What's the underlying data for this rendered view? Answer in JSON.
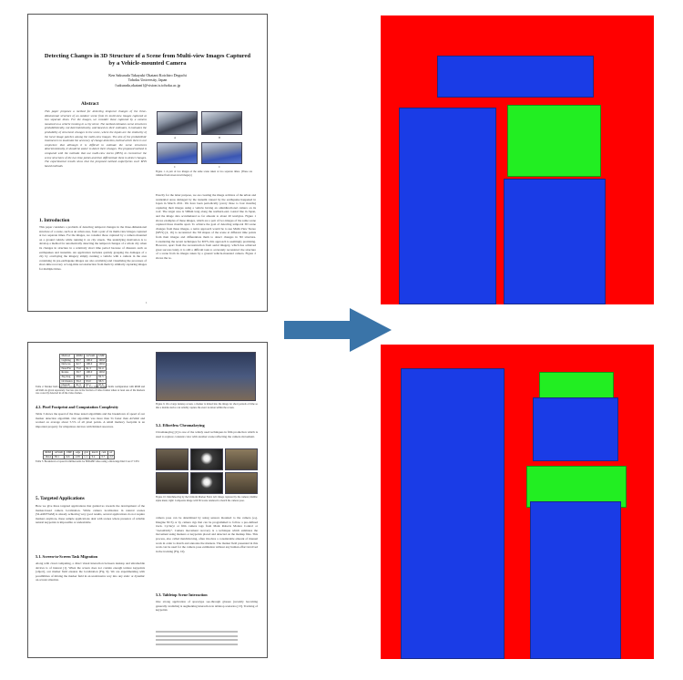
{
  "paper": {
    "title": "Detecting Changes in 3D Structure of a Scene from Multi-view Images Captured by a Vehicle-mounted Camera",
    "authors": "Ken Sakurada   Takayuki Okatani   Koichiro Deguchi",
    "affiliation": "Tohoku University, Japan",
    "email": "{sakurada,okatani}@vision.is.tohoku.ac.jp",
    "abstract_heading": "Abstract",
    "abstract_text": "This paper proposes a method for detecting temporal changes of the three-dimensional structure of an outdoor scene from its multi-view images captured at two separate times. For the images, we consider those captured by a camera mounted on a vehicle running in a city street. The method estimates scene structures probabilistically, not deterministically, and based on their estimates, it evaluates the probability of structural changes in the scene, where the inputs are the similarity of the local image patches among the multi-view images. The aim of the probabilistic treatment is to maximize the accuracy of change detection, behind which there is our conjecture that although it is difficult to estimate the scene structures deterministically, it should be easier to detect their changes. The proposed method is compared with the methods that use multi-view stereo (MVS) to reconstruct the scene structures of the two time points and then differentiate them to detect changes. The experimental results show that the proposed method outperforms such MVS based methods.",
    "intro_heading": "1. Introduction",
    "intro_text": "This paper considers a problem of detecting temporal changes in the three-dimensional structure of a scene, such as an urban area, from a pair of its multi-view images captured at two separate times. For the images, we consider those captured by a camera mounted on a ground vehicle while running it on city streets. The underlying motivation is to develop a method for automatically detecting the temporal changes of a whole city when its changes in structure in a relatively short time period because of disasters such as earthquakes and tsunamis. An application includes quickly grasping the damages of a city by overlaying the imagery simply running a vehicle with a camera in the area containing its pre-earthquake images are also available) and visualizing the processes of short-time recovery or long-time reconstruction from them by similarly capturing images for multiple times.",
    "fig1_caption": "Figure 1. A pair of two images of the same scene taken at two separate times. (These are trimmed from street-level imagery.)",
    "fig1_labels": [
      "A",
      "B",
      "C",
      "C"
    ],
    "col2_text": "Exactly for the latter purpose, we are creating the image archives of the urban and residential areas damaged by the tsunami caused by the earthquake happened in Japan in March 2011. We have been periodically (every three to four months) capturing their images using a vehicle having an omnidirectional camera on its roof. The target area is 500km long along the northern-east coastal line in Japan, and the image data accumulated so far amount to about 20 terabytes. Figure 1 shows examples of these images, which are a pair of two images of the same scene captured three months apart.\n\nTo achieve the goal of detecting temporal 3D scene changes from these images, a naive approach would be to use Multi-View Stereo (MVS) [4, 16] to reconstruct the 3D shapes of the scene at different time points from their images and differentiate them to detect changes in 3D structure. Considering the recent techniques for MVS, this approach is seemingly promising. However, apart from the reconstruction from aerial imagery, which has achieved great success lately, it is still a difficult task to accurately reconstruct the structure of a scene from its images taken by a ground vehicle-mounted camera. Figure 2 shows the re-",
    "page_number": "1",
    "table1": {
      "header": [
        "Method",
        "RDM",
        "ALVAR",
        "UMP"
      ],
      "rows": [
        [
          "Lighting",
          "80.7",
          "100.0",
          "100.0"
        ],
        [
          "Defocus",
          "62.7",
          "100.0",
          "100.0"
        ],
        [
          "Near/Far",
          "75.0",
          "91.3",
          "91.4"
        ],
        [
          "Rotate",
          "56.7",
          "100.0",
          "100.0"
        ],
        [
          "Zig-Zag",
          "28.6",
          "61.2",
          "62.3"
        ],
        [
          "Occlusion",
          "56.2",
          "93.0",
          "96.3"
        ],
        [
          "Overall",
          "61.5",
          "97.1",
          "97.6"
        ]
      ],
      "caption": "Table 2. Marker field detection success rates in %. For UMP, marker fields configuration with RDM and ALVAR are given separately. Success rate is the fraction of video frames where at least one of the markers was correctly detected in all the video frames."
    },
    "fig9_caption": "Figure 9. On a large desktop screen, a marker is mixed into the image for short periods of time so that a mobile device can reliably capture the exact location within the screen.",
    "sec42_heading": "4.2. Pixel Footprint and Computation Complexity",
    "sec42_text": "Table 3 shows the speed of the three tested algorithms and the breakdown of speed of our marker detection algorithm. Our algorithm was more than 5x faster than ALVAR and worked on average about 5.5% of all pixel points. A small memory footprint is an important property for ubiquitous devices with limited resources.",
    "table2": {
      "header": [
        "RDM",
        "ALVAR",
        "UMP",
        "edge",
        "grid",
        "match",
        "cam",
        "ref"
      ],
      "row": [
        "164.4",
        "38.1",
        "6.6",
        "2.05",
        "1.1",
        "0.2",
        "0.7",
        "2.2"
      ],
      "caption": "Table 3. Breakdown of speed in milliseconds for 800x480 video using a mid-range Intel Core i7 CPU."
    },
    "sec5_heading": "5. Targeted Applications",
    "sec5_text": "Here we give three targeted applications that guided us towards the development of the marker-based camera localization. While camera localization in natural scenes (SLAM/PTAM) is already achieving very good results, several applications do not require markers anymore, these sample applications deal with scenes where presence of reliable natural keypoints is impossible or undesirable.",
    "sec51_heading": "5.1. Screen-to-Screen Task Migration",
    "sec51_text": "Along with cloud computing, a direct visual interaction between desktop and ultramobile devices is of interest [1]. When the screen does not contain enough texture keypoints (object), our marker field ensures the localization (Fig. 9). We are experimenting with possibilities of mixing the marker field in an unobtrusive way into any static or dynamic on-screen situation.",
    "sec52_heading": "5.2. Effortless Chromakeying",
    "sec52_text": "Chromakeying [2] is one of the widely used techniques in film production which is used to replace constant color with another scene reflecting the camera movement.",
    "fig10_caption": "Figure 10. Matchmoving by the Uniform Marker Field. left: image captured by the camera; middle: alpha mask; right: Composite image with 3D scene rendered to match the camera pose.",
    "col2b_text": "camera pose can be determined by using sensors mounted to the camera (e.g. Imagine NCS) or by camera rigs that can be programmed to follow a pre-defined track. Cycleryt or film camera tags from Mark Roberts Motion Control or \"AstonDolly\". Camera movement recovery is a technique which estimates the movement using markers or keypoints placed and detected on the markup files. This process, also called matchmoving, often involves a considerable amount of manual work in order to match and annotate the markers. The marker field presented in this work can be used for the camera pose estimation without any human effort involved in the tracking (Fig. 10).",
    "sec53_heading": "5.3. Tabletop Scene Interaction",
    "sec53_text": "One strong application of spacetype see-through glasses (recently becoming generally available) is augmenting interaction in tabletop scenarios [13]. Tracking of keypoints"
  },
  "masks": {
    "colors": {
      "background": "#ff0000",
      "text": "#1a3ce6",
      "figure": "#22ee22"
    }
  }
}
